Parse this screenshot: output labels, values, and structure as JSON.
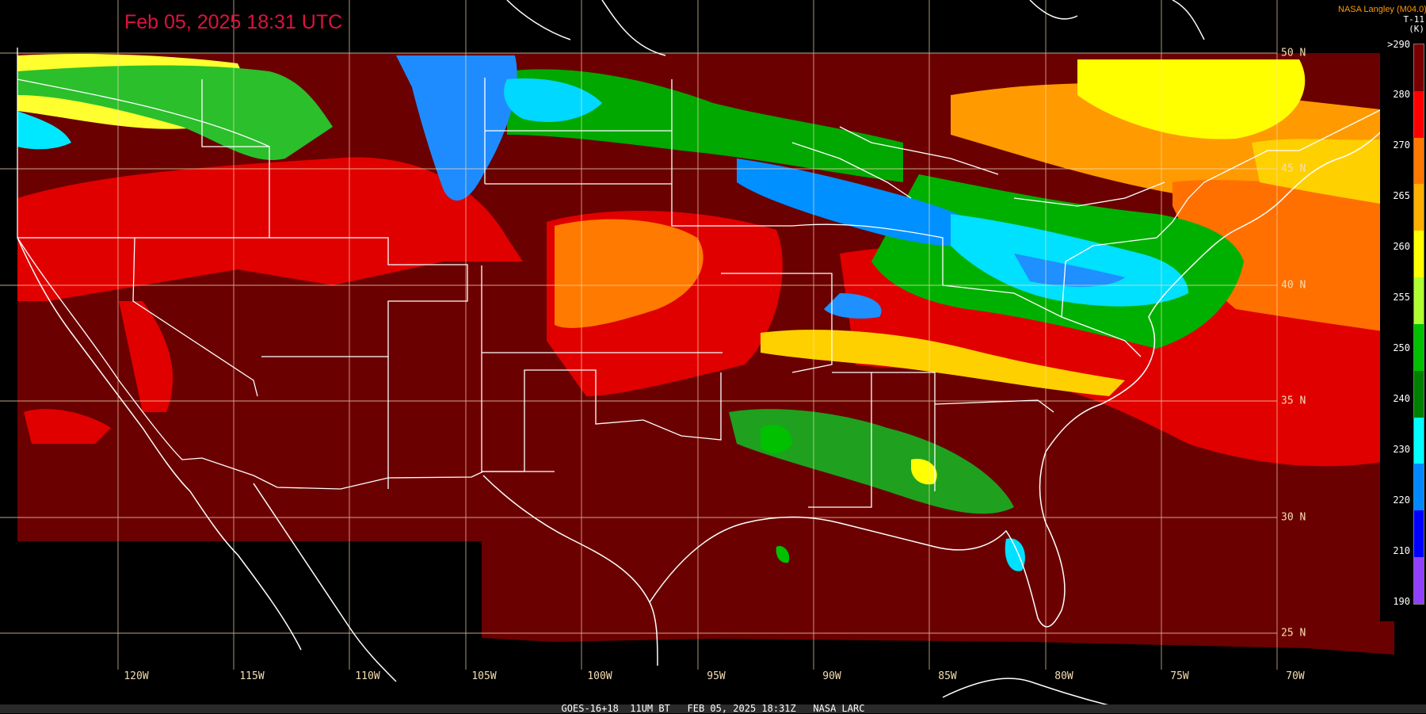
{
  "map": {
    "timestamp": "Feb 05, 2025 18:31 UTC",
    "credit": "NASA Langley (M04.0)",
    "footer": "GOES-16+18  11UM BT   FEB 05, 2025 18:31Z   NASA LARC",
    "lon_labels": [
      "120W",
      "115W",
      "110W",
      "105W",
      "100W",
      "95W",
      "90W",
      "85W",
      "80W",
      "75W",
      "70W"
    ],
    "lat_labels": [
      "50 N",
      "45 N",
      "40 N",
      "35 N",
      "30 N",
      "25 N"
    ]
  },
  "legend": {
    "title_line1": "T-11",
    "title_line2": "(K)",
    "ticks": [
      ">290",
      "280",
      "270",
      "265",
      "260",
      "255",
      "250",
      "240",
      "230",
      "220",
      "210",
      "190"
    ],
    "colors": [
      "#7a0000",
      "#ff0000",
      "#ff7800",
      "#ffb000",
      "#ffff00",
      "#b0ff30",
      "#00c000",
      "#008000",
      "#00ffff",
      "#0088ff",
      "#0000ff",
      "#9040ff"
    ]
  },
  "colors": {
    "warm_surface": "#6b0000",
    "grid": "#f5deb3",
    "borders": "#ffffff",
    "background": "#000000"
  }
}
